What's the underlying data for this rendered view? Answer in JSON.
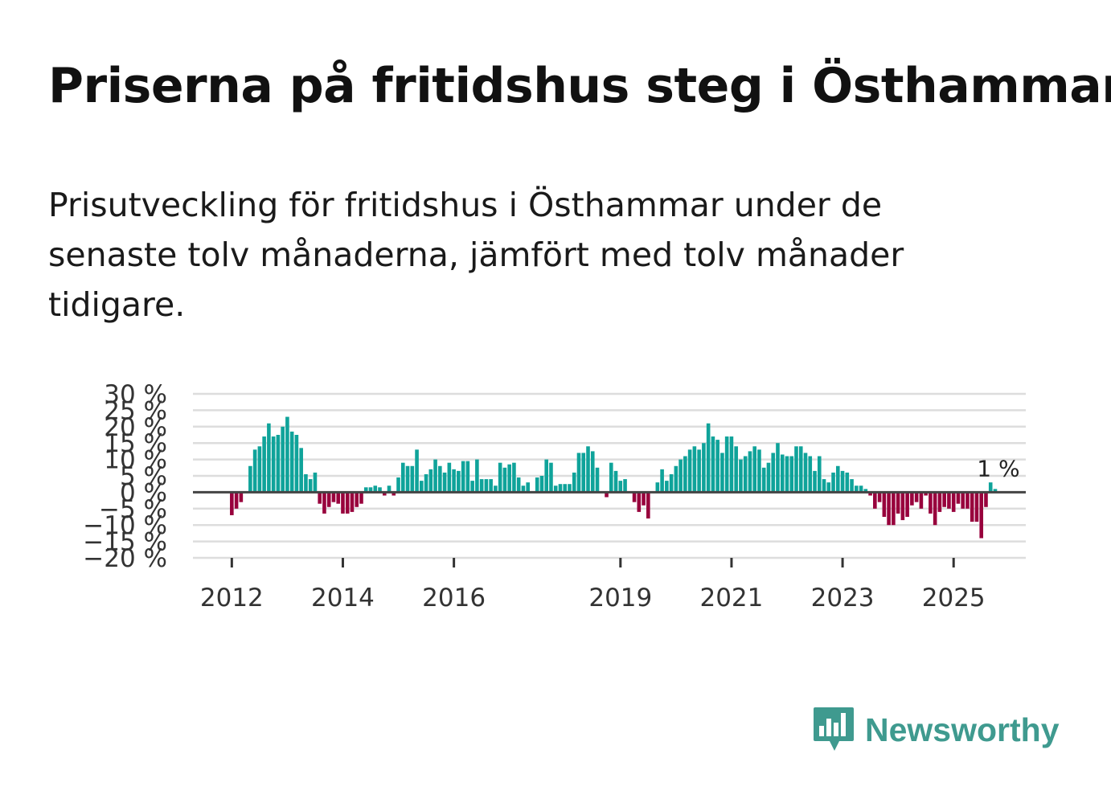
{
  "title": "Priserna på fritidshus steg i Östhammar",
  "subtitle": "Prisutveckling för fritidshus i Östhammar under de senaste tolv månaderna, jämfört med tolv månader tidigare.",
  "brand": {
    "name": "Newsworthy",
    "icon": "newsworthy-logo-icon",
    "color": "#3f9a8f"
  },
  "colors": {
    "positive": "#0fa39a",
    "negative": "#98003c",
    "grid": "#dddddd",
    "zero": "#444444"
  },
  "chart_data": {
    "type": "bar",
    "ylabel": "",
    "xlabel": "",
    "ylim": [
      -20,
      30
    ],
    "yticks": [
      -20,
      -15,
      -10,
      -5,
      0,
      5,
      10,
      15,
      20,
      25,
      30
    ],
    "ytick_labels": [
      "−20 %",
      "−15 %",
      "−10 %",
      "−5 %",
      "0 %",
      "5 %",
      "10 %",
      "15 %",
      "20 %",
      "25 %",
      "30 %"
    ],
    "x_range": [
      2011.3,
      2026.3
    ],
    "xticks": [
      2012,
      2014,
      2016,
      2019,
      2021,
      2023,
      2025
    ],
    "xtick_labels": [
      "2012",
      "2014",
      "2016",
      "2019",
      "2021",
      "2023",
      "2025"
    ],
    "x_start": 2012.0,
    "x_step": 0.08333,
    "end_label": "1 %",
    "values": [
      -7,
      -5,
      -3,
      0,
      8,
      13,
      14,
      17,
      21,
      17,
      17.5,
      20,
      23,
      18.5,
      17.5,
      13.5,
      5.5,
      4,
      6,
      -3.5,
      -6.5,
      -4.5,
      -3,
      -3.5,
      -6.5,
      -6.5,
      -6,
      -4.5,
      -3.5,
      1.5,
      1.5,
      2,
      1.5,
      -1,
      2,
      -1,
      4.5,
      9,
      8,
      8,
      13,
      3.5,
      5.5,
      7,
      10,
      8,
      6,
      9,
      7,
      6.5,
      9.5,
      9.5,
      3.5,
      10,
      4,
      4,
      4,
      2,
      9,
      7.5,
      8.5,
      9,
      4.5,
      2,
      3,
      0,
      4.5,
      5,
      10,
      9,
      2,
      2.5,
      2.5,
      2.5,
      6,
      12,
      12,
      14,
      12.5,
      7.5,
      0,
      -1.5,
      9,
      6.5,
      3.5,
      4,
      0,
      -3,
      -6,
      -4,
      -8,
      0,
      3,
      7,
      3.5,
      5.5,
      8,
      10,
      11,
      13,
      14,
      13,
      15,
      21,
      17,
      16,
      12,
      17,
      17,
      14,
      10,
      11,
      12.5,
      14,
      13,
      7.5,
      9,
      12,
      15,
      11.5,
      11,
      11,
      14,
      14,
      12,
      11,
      6.5,
      11,
      4,
      3,
      6,
      8,
      6.5,
      6,
      4,
      2,
      2,
      1,
      -1,
      -5,
      -3,
      -7.5,
      -10,
      -10,
      -6.5,
      -8.5,
      -7.5,
      -4,
      -3,
      -5,
      -1,
      -6.5,
      -10,
      -6,
      -4.5,
      -5,
      -6,
      -3.5,
      -5,
      -5,
      -9,
      -9,
      -14,
      -4.5,
      3,
      1
    ]
  }
}
